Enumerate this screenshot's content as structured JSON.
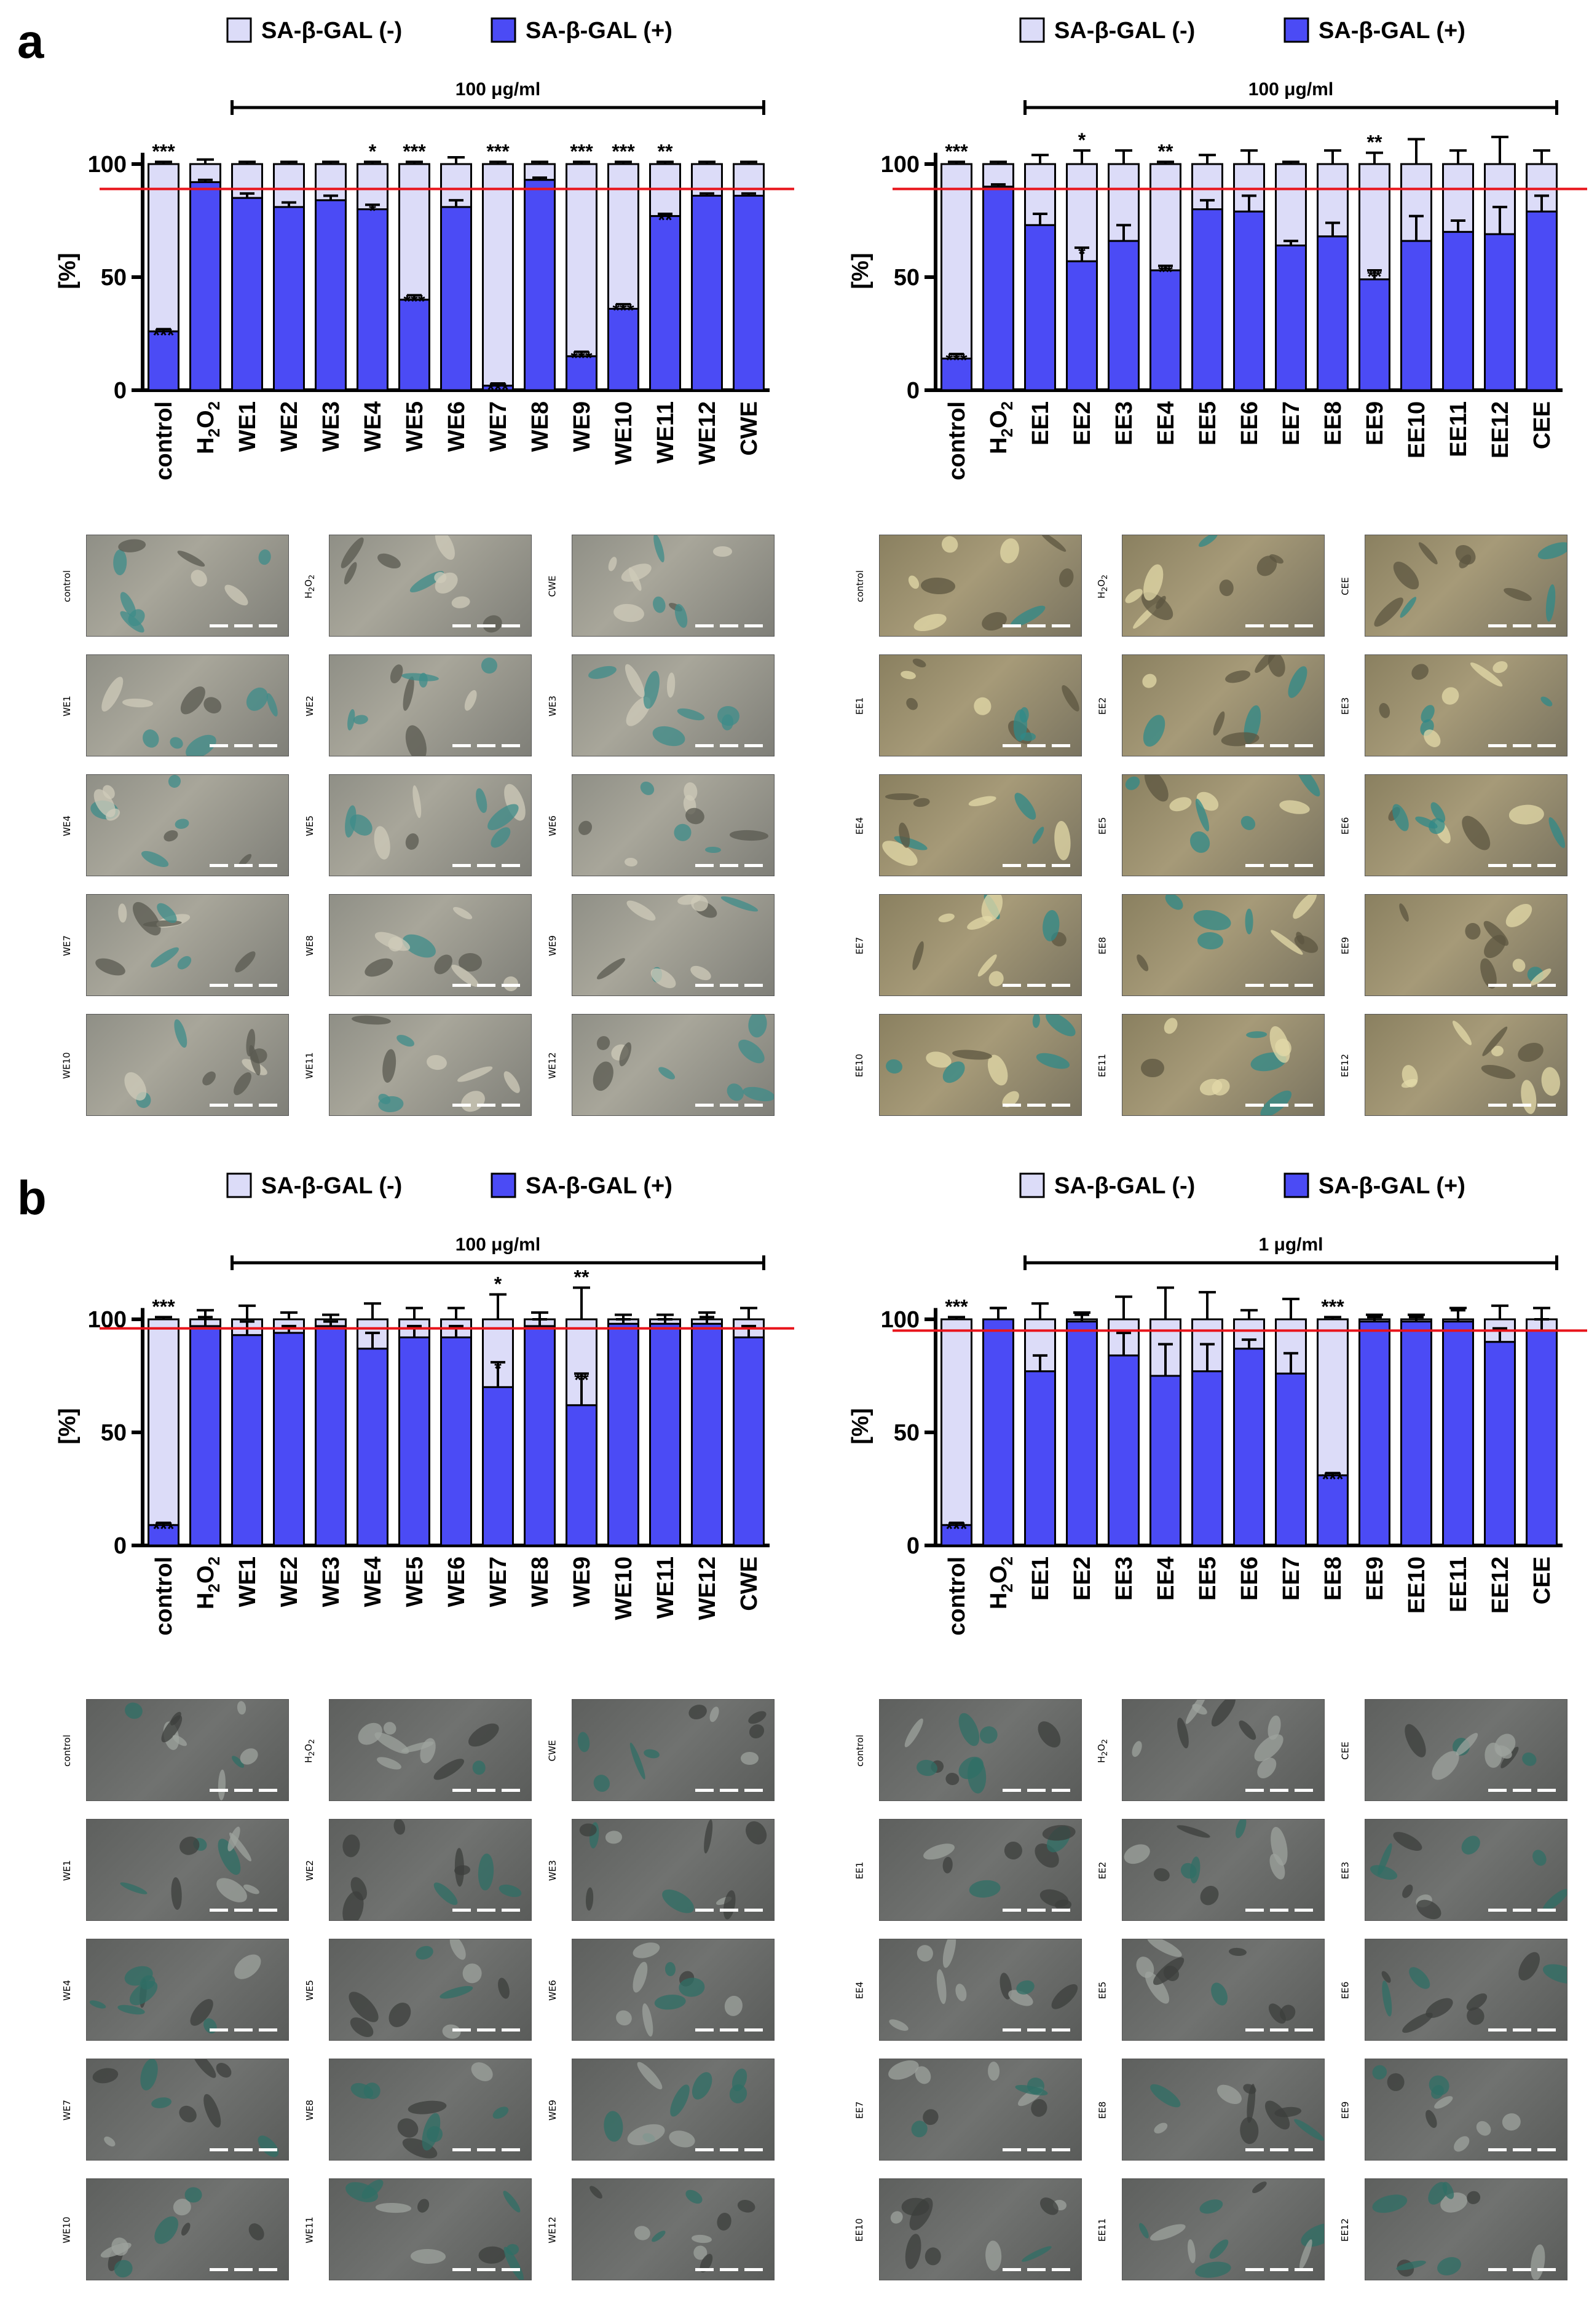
{
  "panels": {
    "a": "a",
    "b": "b"
  },
  "legend": {
    "neg_label": "SA-β-GAL (-)",
    "pos_label": "SA-β-GAL (+)"
  },
  "colors": {
    "neg": "#dcdcf8",
    "pos": "#4b4bf5",
    "threshold": "#e8141b",
    "axis": "#000000"
  },
  "chart_data": [
    {
      "id": "a-left",
      "type": "bar",
      "stacked": true,
      "ylabel": "[%]",
      "ylim": [
        0,
        100
      ],
      "yticks": [
        0,
        50,
        100
      ],
      "bracket_label": "100 μg/ml",
      "bracket_from": "WE1",
      "bracket_to": "CWE",
      "threshold": 89,
      "categories": [
        "control",
        "H2O2",
        "WE1",
        "WE2",
        "WE3",
        "WE4",
        "WE5",
        "WE6",
        "WE7",
        "WE8",
        "WE9",
        "WE10",
        "WE11",
        "WE12",
        "CWE"
      ],
      "series": [
        {
          "name": "SA-β-GAL (+)",
          "values": [
            26,
            92,
            85,
            81,
            84,
            80,
            40,
            81,
            2,
            93,
            15,
            36,
            77,
            86,
            86
          ],
          "errors": [
            1,
            1,
            2,
            2,
            2,
            2,
            2,
            3,
            1,
            1,
            2,
            2,
            1,
            1,
            1
          ]
        },
        {
          "name": "SA-β-GAL (-)",
          "values": [
            74,
            8,
            15,
            19,
            16,
            20,
            60,
            19,
            98,
            7,
            85,
            64,
            23,
            14,
            14
          ],
          "errors": [
            1,
            2,
            1,
            1,
            1,
            1,
            1,
            3,
            1,
            1,
            1,
            1,
            1,
            1,
            1
          ]
        }
      ],
      "sig_top": [
        "***",
        "",
        "",
        "",
        "",
        "*",
        "***",
        "",
        "***",
        "",
        "***",
        "***",
        "**",
        "",
        ""
      ],
      "sig_bar": [
        "***",
        "",
        "",
        "",
        "",
        "*",
        "***",
        "",
        "***",
        "",
        "***",
        "***",
        "**",
        "",
        ""
      ]
    },
    {
      "id": "a-right",
      "type": "bar",
      "stacked": true,
      "ylabel": "[%]",
      "ylim": [
        0,
        100
      ],
      "yticks": [
        0,
        50,
        100
      ],
      "bracket_label": "100 μg/ml",
      "bracket_from": "EE1",
      "bracket_to": "CEE",
      "threshold": 89,
      "categories": [
        "control",
        "H2O2",
        "EE1",
        "EE2",
        "EE3",
        "EE4",
        "EE5",
        "EE6",
        "EE7",
        "EE8",
        "EE9",
        "EE10",
        "EE11",
        "EE12",
        "CEE"
      ],
      "series": [
        {
          "name": "SA-β-GAL (+)",
          "values": [
            14,
            90,
            73,
            57,
            66,
            53,
            80,
            79,
            64,
            68,
            49,
            66,
            70,
            69,
            79
          ],
          "errors": [
            2,
            1,
            5,
            6,
            7,
            2,
            4,
            7,
            2,
            6,
            4,
            11,
            5,
            12,
            7
          ]
        },
        {
          "name": "SA-β-GAL (-)",
          "values": [
            86,
            10,
            27,
            43,
            34,
            47,
            20,
            21,
            36,
            32,
            51,
            34,
            30,
            31,
            21
          ],
          "errors": [
            1,
            1,
            4,
            6,
            6,
            1,
            4,
            6,
            1,
            6,
            5,
            11,
            6,
            12,
            6
          ]
        }
      ],
      "sig_top": [
        "***",
        "",
        "",
        "*",
        "",
        "**",
        "",
        "",
        "",
        "",
        "**",
        "",
        "",
        "",
        ""
      ],
      "sig_bar": [
        "***",
        "",
        "",
        "*",
        "",
        "**",
        "",
        "",
        "",
        "",
        "**",
        "",
        "",
        "",
        ""
      ]
    },
    {
      "id": "b-left",
      "type": "bar",
      "stacked": true,
      "ylabel": "[%]",
      "ylim": [
        0,
        100
      ],
      "yticks": [
        0,
        50,
        100
      ],
      "bracket_label": "100 μg/ml",
      "bracket_from": "WE1",
      "bracket_to": "CWE",
      "threshold": 96,
      "categories": [
        "control",
        "H2O2",
        "WE1",
        "WE2",
        "WE3",
        "WE4",
        "WE5",
        "WE6",
        "WE7",
        "WE8",
        "WE9",
        "WE10",
        "WE11",
        "WE12",
        "CWE"
      ],
      "series": [
        {
          "name": "SA-β-GAL (+)",
          "values": [
            9,
            97,
            93,
            94,
            97,
            87,
            92,
            92,
            70,
            97,
            62,
            98,
            98,
            98,
            92
          ],
          "errors": [
            1,
            4,
            6,
            3,
            2,
            7,
            5,
            5,
            11,
            3,
            14,
            2,
            2,
            3,
            5
          ]
        },
        {
          "name": "SA-β-GAL (-)",
          "values": [
            91,
            3,
            7,
            6,
            3,
            13,
            8,
            8,
            30,
            3,
            38,
            2,
            2,
            2,
            8
          ],
          "errors": [
            1,
            4,
            6,
            3,
            2,
            7,
            5,
            5,
            11,
            3,
            14,
            2,
            2,
            3,
            5
          ]
        }
      ],
      "sig_top": [
        "***",
        "",
        "",
        "",
        "",
        "",
        "",
        "",
        "*",
        "",
        "**",
        "",
        "",
        "",
        ""
      ],
      "sig_bar": [
        "***",
        "",
        "",
        "",
        "",
        "",
        "",
        "",
        "*",
        "",
        "**",
        "",
        "",
        "",
        ""
      ]
    },
    {
      "id": "b-right",
      "type": "bar",
      "stacked": true,
      "ylabel": "[%]",
      "ylim": [
        0,
        100
      ],
      "yticks": [
        0,
        50,
        100
      ],
      "bracket_label": "1 μg/ml",
      "bracket_from": "EE1",
      "bracket_to": "CEE",
      "threshold": 95,
      "categories": [
        "control",
        "H2O2",
        "EE1",
        "EE2",
        "EE3",
        "EE4",
        "EE5",
        "EE6",
        "EE7",
        "EE8",
        "EE9",
        "EE10",
        "EE11",
        "EE12",
        "CEE"
      ],
      "series": [
        {
          "name": "SA-β-GAL (+)",
          "values": [
            9,
            100,
            77,
            99,
            84,
            75,
            77,
            87,
            76,
            31,
            99,
            99,
            99,
            90,
            95
          ],
          "errors": [
            1,
            5,
            7,
            3,
            10,
            14,
            12,
            4,
            9,
            1,
            2,
            2,
            5,
            6,
            5
          ]
        },
        {
          "name": "SA-β-GAL (-)",
          "values": [
            91,
            0,
            23,
            1,
            16,
            25,
            23,
            13,
            24,
            69,
            1,
            1,
            1,
            10,
            5
          ],
          "errors": [
            1,
            5,
            7,
            3,
            10,
            14,
            12,
            4,
            9,
            1,
            2,
            2,
            5,
            6,
            5
          ]
        }
      ],
      "sig_top": [
        "***",
        "",
        "",
        "",
        "",
        "",
        "",
        "",
        "",
        "***",
        "",
        "",
        "",
        "",
        ""
      ],
      "sig_bar": [
        "***",
        "",
        "",
        "",
        "",
        "",
        "",
        "",
        "",
        "***",
        "",
        "",
        "",
        "",
        ""
      ]
    }
  ],
  "micrographs": {
    "a_left": [
      "control",
      "H2O2",
      "CWE",
      "WE1",
      "WE2",
      "WE3",
      "WE4",
      "WE5",
      "WE6",
      "WE7",
      "WE8",
      "WE9",
      "WE10",
      "WE11",
      "WE12"
    ],
    "a_right": [
      "control",
      "H2O2",
      "CEE",
      "EE1",
      "EE2",
      "EE3",
      "EE4",
      "EE5",
      "EE6",
      "EE7",
      "EE8",
      "EE9",
      "EE10",
      "EE11",
      "EE12"
    ],
    "b_left": [
      "control",
      "H2O2",
      "CWE",
      "WE1",
      "WE2",
      "WE3",
      "WE4",
      "WE5",
      "WE6",
      "WE7",
      "WE8",
      "WE9",
      "WE10",
      "WE11",
      "WE12"
    ],
    "b_right": [
      "control",
      "H2O2",
      "CEE",
      "EE1",
      "EE2",
      "EE3",
      "EE4",
      "EE5",
      "EE6",
      "EE7",
      "EE8",
      "EE9",
      "EE10",
      "EE11",
      "EE12"
    ]
  }
}
